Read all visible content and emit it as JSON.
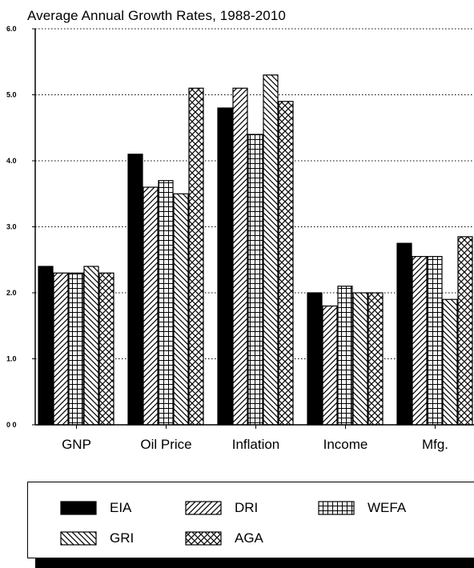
{
  "chart_data": {
    "type": "bar",
    "title": "Average Annual Growth Rates, 1988-2010",
    "categories": [
      "GNP",
      "Oil Price",
      "Inflation",
      "Income",
      "Mfg."
    ],
    "series": [
      {
        "name": "EIA",
        "pattern": "solid",
        "values": [
          2.4,
          4.1,
          4.8,
          2.0,
          2.75
        ]
      },
      {
        "name": "DRI",
        "pattern": "diagonal-forward",
        "values": [
          2.3,
          3.6,
          5.1,
          1.8,
          2.55
        ]
      },
      {
        "name": "WEFA",
        "pattern": "grid",
        "values": [
          2.3,
          3.7,
          4.4,
          2.1,
          2.55
        ]
      },
      {
        "name": "GRI",
        "pattern": "diagonal-back",
        "values": [
          2.4,
          3.5,
          5.3,
          2.0,
          1.9
        ]
      },
      {
        "name": "AGA",
        "pattern": "crosshatch",
        "values": [
          2.3,
          5.1,
          4.9,
          2.0,
          2.85
        ]
      }
    ],
    "ylim": [
      0,
      6
    ],
    "yticks": [
      "0 0",
      "1.0",
      "2.0",
      "3.0",
      "4.0",
      "5.0",
      "6.0"
    ],
    "grid": "dotted horizontal",
    "legend_position": "bottom"
  }
}
